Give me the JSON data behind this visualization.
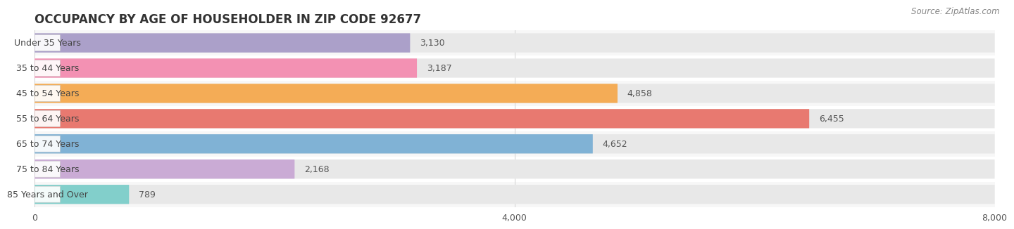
{
  "title": "OCCUPANCY BY AGE OF HOUSEHOLDER IN ZIP CODE 92677",
  "source": "Source: ZipAtlas.com",
  "categories": [
    "Under 35 Years",
    "35 to 44 Years",
    "45 to 54 Years",
    "55 to 64 Years",
    "65 to 74 Years",
    "75 to 84 Years",
    "85 Years and Over"
  ],
  "values": [
    3130,
    3187,
    4858,
    6455,
    4652,
    2168,
    789
  ],
  "bar_colors": [
    "#a89cc8",
    "#f48cb1",
    "#f5a94e",
    "#e8736a",
    "#7bafd4",
    "#c9a8d4",
    "#7dceca"
  ],
  "xlim": [
    0,
    8000
  ],
  "xticks": [
    0,
    4000,
    8000
  ],
  "fig_bg": "#ffffff",
  "row_bg_even": "#f7f7f7",
  "row_bg_odd": "#ffffff",
  "bar_track_color": "#e8e8e8",
  "title_fontsize": 12,
  "label_fontsize": 9,
  "value_fontsize": 9,
  "source_fontsize": 8.5
}
